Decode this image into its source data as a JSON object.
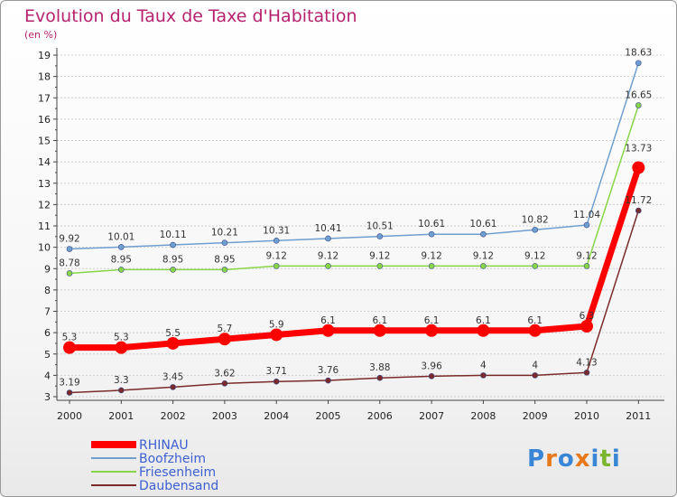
{
  "title": "Evolution du Taux de Taxe d'Habitation",
  "subtitle": "(en %)",
  "colors": {
    "title": "#b5226e",
    "rhinau": "#ff0000",
    "boofzheim": "#6f9fd0",
    "friesenheim": "#88d548",
    "daubensand": "#7a2a2a",
    "legend_text": "#3e5fd0"
  },
  "logo": {
    "text": "Proxiti",
    "letters": [
      "P",
      "r",
      "o",
      "x",
      "i",
      "t",
      "i"
    ],
    "colors": [
      "#3a86d6",
      "#e8791a",
      "#3a86d6",
      "#e8791a",
      "#3a86d6",
      "#7ab52d",
      "#3a86d6"
    ]
  },
  "chart_data": {
    "type": "line",
    "title": "Evolution du Taux de Taxe d'Habitation",
    "ylabel": "(en %)",
    "xlabel": "",
    "x": [
      "2000",
      "2001",
      "2002",
      "2003",
      "2004",
      "2005",
      "2006",
      "2007",
      "2008",
      "2009",
      "2010",
      "2011"
    ],
    "ylim": [
      3,
      19
    ],
    "yticks": [
      "3",
      "4",
      "5",
      "6",
      "7",
      "8",
      "9",
      "10",
      "11",
      "12",
      "13",
      "14",
      "15",
      "16",
      "17",
      "18",
      "19"
    ],
    "grid": "horizontal dotted",
    "legend_placement": "bottom-left",
    "series": [
      {
        "name": "RHINAU",
        "color": "#ff0000",
        "width": 7,
        "marker": 7,
        "values": [
          5.3,
          5.3,
          5.5,
          5.7,
          5.9,
          6.1,
          6.1,
          6.1,
          6.1,
          6.1,
          6.3,
          13.73
        ],
        "labels": [
          "5.3",
          "5.3",
          "5.5",
          "5.7",
          "5.9",
          "6.1",
          "6.1",
          "6.1",
          "6.1",
          "6.1",
          "6.3",
          "13.73"
        ]
      },
      {
        "name": "Boofzheim",
        "color": "#6f9fd0",
        "width": 1.5,
        "marker": 3,
        "values": [
          9.92,
          10.01,
          10.11,
          10.21,
          10.31,
          10.41,
          10.51,
          10.61,
          10.61,
          10.82,
          11.04,
          18.63
        ],
        "labels": [
          "9.92",
          "10.01",
          "10.11",
          "10.21",
          "10.31",
          "10.41",
          "10.51",
          "10.61",
          "10.61",
          "10.82",
          "11.04",
          "18.63"
        ]
      },
      {
        "name": "Friesenheim",
        "color": "#88d548",
        "width": 1.5,
        "marker": 3,
        "values": [
          8.78,
          8.95,
          8.95,
          8.95,
          9.12,
          9.12,
          9.12,
          9.12,
          9.12,
          9.12,
          9.12,
          16.65
        ],
        "labels": [
          "8.78",
          "8.95",
          "8.95",
          "8.95",
          "9.12",
          "9.12",
          "9.12",
          "9.12",
          "9.12",
          "9.12",
          "9.12",
          "16.65"
        ]
      },
      {
        "name": "Daubensand",
        "color": "#7a2a2a",
        "width": 1.5,
        "marker": 3,
        "values": [
          3.19,
          3.3,
          3.45,
          3.62,
          3.71,
          3.76,
          3.88,
          3.96,
          4,
          4,
          4.13,
          11.72
        ],
        "labels": [
          "3.19",
          "3.3",
          "3.45",
          "3.62",
          "3.71",
          "3.76",
          "3.88",
          "3.96",
          "4",
          "4",
          "4.13",
          "11.72"
        ]
      }
    ]
  }
}
